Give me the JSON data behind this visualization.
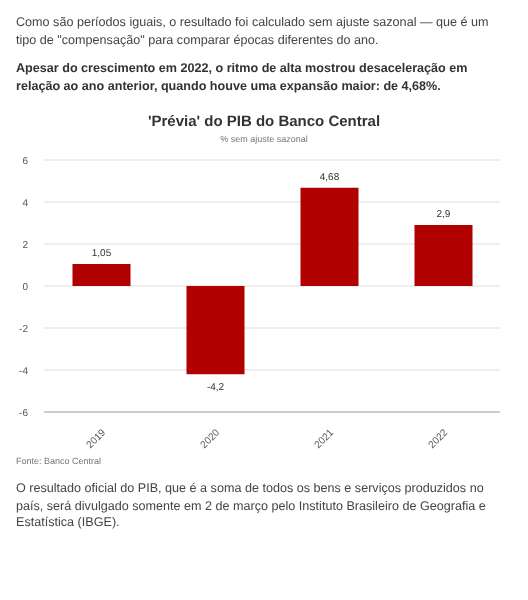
{
  "chart_data": {
    "type": "bar",
    "title": "'Prévia' do PIB do Banco Central",
    "subtitle": "% sem ajuste sazonal",
    "annotations": [
      "Como são períodos iguais, o resultado foi calculado sem ajuste sazonal — que é um tipo de \"compensação\" para comparar épocas diferentes do ano.",
      "Apesar do crescimento em 2022, o ritmo de alta mostrou desaceleração em relação ao ano anterior, quando houve uma expansão maior: de 4,68%.",
      "Fonte: Banco Central",
      "O resultado oficial do PIB, que é a soma de todos os bens e serviços produzidos no país, será divulgado somente em 2 de março pelo Instituto Brasileiro de Geografia e Estatística (IBGE)."
    ],
    "categories": [
      "2019",
      "2020",
      "2021",
      "2022"
    ],
    "values": [
      1.05,
      -4.2,
      4.68,
      2.9
    ],
    "value_labels": [
      "1,05",
      "-4,2",
      "4,68",
      "2,9"
    ],
    "color": "#b00000",
    "ylim": [
      -6,
      6
    ],
    "yticks": [
      -6,
      -4,
      -2,
      0,
      2,
      4,
      6
    ],
    "grid": "y"
  }
}
